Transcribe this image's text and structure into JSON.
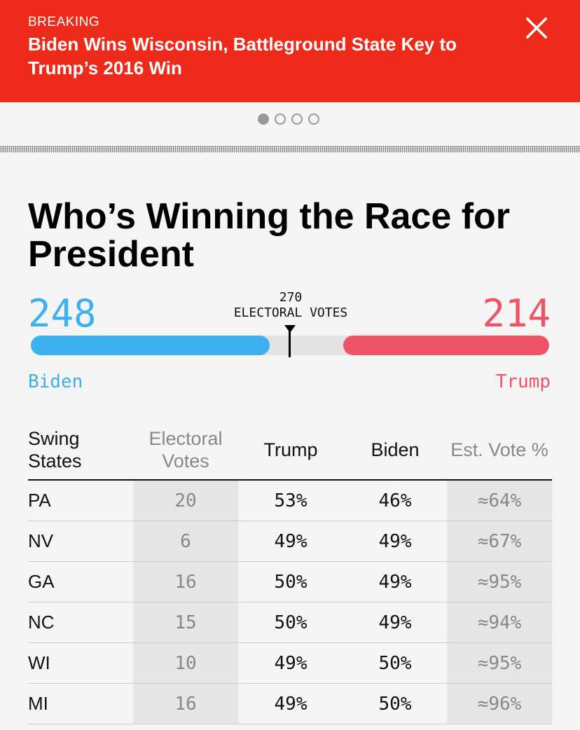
{
  "banner": {
    "tag": "BREAKING",
    "headline": "Biden Wins Wisconsin, Battleground State Key to Trump’s 2016 Win",
    "close_icon": "close-icon"
  },
  "carousel": {
    "pages": 4,
    "active_index": 0
  },
  "title": "Who’s Winning the Race for President",
  "tally": {
    "biden_count": "248",
    "trump_count": "214",
    "threshold_number": "270",
    "threshold_label": "ELECTORAL VOTES",
    "biden_label": "Biden",
    "trump_label": "Trump",
    "total_votes": 538,
    "biden_votes": 248,
    "trump_votes": 214,
    "threshold_votes": 270
  },
  "colors": {
    "banner": "#ee2b1b",
    "biden": "#3db0ef",
    "trump": "#ef5366"
  },
  "table": {
    "headers": {
      "state": "Swing States",
      "ev": "Electoral Votes",
      "trump": "Trump",
      "biden": "Biden",
      "est": "Est. Vote %"
    },
    "rows": [
      {
        "state": "PA",
        "ev": "20",
        "trump": "53%",
        "biden": "46%",
        "est": "≈64%"
      },
      {
        "state": "NV",
        "ev": "6",
        "trump": "49%",
        "biden": "49%",
        "est": "≈67%"
      },
      {
        "state": "GA",
        "ev": "16",
        "trump": "50%",
        "biden": "49%",
        "est": "≈95%"
      },
      {
        "state": "NC",
        "ev": "15",
        "trump": "50%",
        "biden": "49%",
        "est": "≈94%"
      },
      {
        "state": "WI",
        "ev": "10",
        "trump": "49%",
        "biden": "50%",
        "est": "≈95%"
      },
      {
        "state": "MI",
        "ev": "16",
        "trump": "49%",
        "biden": "50%",
        "est": "≈96%"
      }
    ]
  }
}
